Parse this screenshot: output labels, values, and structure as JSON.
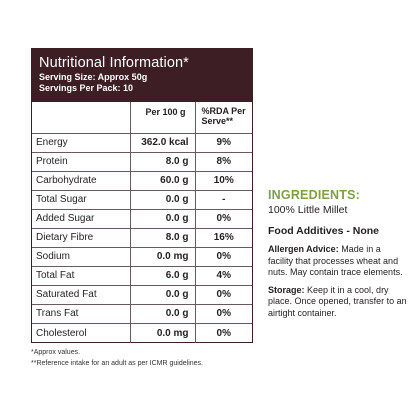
{
  "panel": {
    "title": "Nutritional Information*",
    "serving_size": "Serving Size: Approx 50g",
    "servings_per_pack": "Servings Per Pack: 10",
    "col_per100": "Per 100 g",
    "col_rda_line1": "%RDA Per",
    "col_rda_line2": "Serve**",
    "rows": [
      {
        "name": "Energy",
        "value": "362.0 kcal",
        "rda": "9%"
      },
      {
        "name": "Protein",
        "value": "8.0 g",
        "rda": "8%"
      },
      {
        "name": "Carbohydrate",
        "value": "60.0 g",
        "rda": "10%"
      },
      {
        "name": "Total Sugar",
        "value": "0.0 g",
        "rda": "-"
      },
      {
        "name": "Added Sugar",
        "value": "0.0 g",
        "rda": "0%"
      },
      {
        "name": "Dietary Fibre",
        "value": "8.0 g",
        "rda": "16%"
      },
      {
        "name": "Sodium",
        "value": "0.0 mg",
        "rda": "0%"
      },
      {
        "name": "Total Fat",
        "value": "6.0 g",
        "rda": "4%"
      },
      {
        "name": "Saturated Fat",
        "value": "0.0 g",
        "rda": "0%"
      },
      {
        "name": "Trans Fat",
        "value": "0.0 g",
        "rda": "0%"
      },
      {
        "name": "Cholesterol",
        "value": "0.0 mg",
        "rda": "0%"
      }
    ]
  },
  "footnotes": {
    "approx": "*Approx values.",
    "reference": "**Reference intake for an adult as per ICMR guidelines."
  },
  "ingredients": {
    "title": "INGREDIENTS:",
    "text": "100% Little Millet",
    "additives": "Food Additives - None",
    "allergen_label": "Allergen Advice:",
    "allergen_text": " Made in a facility that processes wheat and nuts. May contain trace elements.",
    "storage_label": "Storage:",
    "storage_text": " Keep it in a cool, dry place. Once opened, transfer to an airtight container."
  },
  "colors": {
    "header_bg": "#3d1e24",
    "ingredients_green": "#7fa045"
  }
}
